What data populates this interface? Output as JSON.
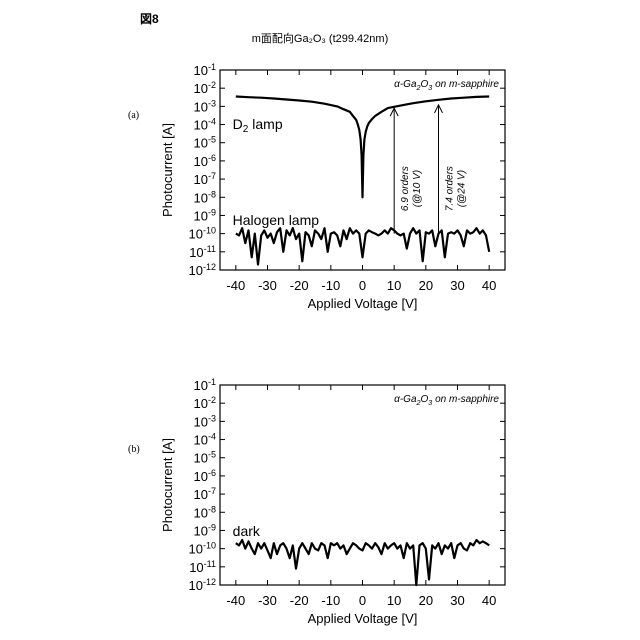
{
  "figure": {
    "label": "図8",
    "title": "m面配向Ga₂O₃ (t299.42nm)"
  },
  "panels": [
    {
      "label": "(a)"
    },
    {
      "label": "(b)"
    }
  ],
  "chart_data": [
    {
      "type": "line",
      "title": "",
      "xlabel": "Applied Voltage [V]",
      "ylabel": "Photocurrent [A]",
      "xlim": [
        -45,
        45
      ],
      "ylim": [
        1e-12,
        0.1
      ],
      "yscale": "log",
      "x_ticks": [
        -40,
        -30,
        -20,
        -10,
        0,
        10,
        20,
        30,
        40
      ],
      "y_ticks": [
        "10-1",
        "10-2",
        "10-3",
        "10-4",
        "10-5",
        "10-6",
        "10-7",
        "10-8",
        "10-9",
        "10-10",
        "10-11",
        "10-12"
      ],
      "inset_label": "α-Ga₂O₃ on m-sapphire",
      "annotations": [
        {
          "text": "6.9 orders",
          "sub": "(@10 V)",
          "x": 10,
          "from": 1e-10,
          "to": 0.0008
        },
        {
          "text": "7.4 orders",
          "sub": "(@24 V)",
          "x": 24,
          "from": 1e-10,
          "to": 0.0012
        }
      ],
      "series": [
        {
          "name": "D₂ lamp",
          "x": [
            -40,
            -36,
            -32,
            -28,
            -24,
            -20,
            -16,
            -12,
            -8,
            -6,
            -4,
            -3,
            -2,
            -1.5,
            -1,
            -0.6,
            -0.3,
            0,
            0.3,
            0.6,
            1,
            1.5,
            2,
            3,
            4,
            6,
            8,
            12,
            16,
            20,
            24,
            28,
            32,
            36,
            40
          ],
          "y": [
            0.0035,
            0.0032,
            0.003,
            0.0027,
            0.0024,
            0.0021,
            0.0018,
            0.0014,
            0.001,
            0.0007,
            0.0005,
            0.0003,
            0.00018,
            0.0001,
            5e-05,
            1.5e-05,
            2e-06,
            1e-08,
            2e-06,
            1.5e-05,
            4e-05,
            8e-05,
            0.00012,
            0.0002,
            0.0003,
            0.0005,
            0.0008,
            0.0011,
            0.0015,
            0.0019,
            0.0023,
            0.0027,
            0.003,
            0.0033,
            0.0035
          ]
        },
        {
          "name": "Halogen lamp",
          "x": [
            -40,
            -39,
            -38,
            -37,
            -36,
            -35,
            -34,
            -33,
            -32,
            -31,
            -30,
            -29,
            -28,
            -27,
            -26,
            -25,
            -24,
            -23,
            -22,
            -21,
            -20,
            -19,
            -18,
            -17,
            -16,
            -15,
            -14,
            -13,
            -12,
            -11,
            -10,
            -9,
            -8,
            -7,
            -6,
            -5,
            -4,
            -3,
            -2,
            -1,
            0,
            1,
            2,
            3,
            4,
            5,
            6,
            7,
            8,
            9,
            10,
            11,
            12,
            13,
            14,
            15,
            16,
            17,
            18,
            19,
            20,
            21,
            22,
            23,
            24,
            25,
            26,
            27,
            28,
            29,
            30,
            31,
            32,
            33,
            34,
            35,
            36,
            37,
            38,
            39,
            40
          ],
          "y": [
            1e-10,
            8e-11,
            2e-10,
            3e-11,
            1.5e-10,
            5e-12,
            1e-10,
            2e-12,
            8e-11,
            1.5e-10,
            6e-11,
            1e-10,
            3e-11,
            1.2e-10,
            2e-10,
            1e-11,
            1.5e-10,
            8e-11,
            2e-10,
            5e-11,
            1e-10,
            3e-12,
            1.2e-10,
            8e-11,
            2e-11,
            1.5e-10,
            1e-10,
            5e-11,
            2e-10,
            1e-11,
            1e-10,
            1.2e-10,
            8e-11,
            2e-11,
            1.5e-10,
            5e-11,
            2e-10,
            1e-10,
            1.5e-10,
            1e-10,
            5e-12,
            1e-10,
            1.5e-10,
            1.2e-10,
            1e-10,
            8e-11,
            1e-10,
            1.5e-10,
            1e-10,
            2e-10,
            1.5e-10,
            1e-10,
            8e-11,
            1e-10,
            1.5e-11,
            1e-10,
            2e-10,
            1e-10,
            1.5e-10,
            3e-12,
            1.2e-10,
            1e-10,
            1.5e-10,
            2e-11,
            1e-10,
            1.5e-10,
            5e-12,
            1e-10,
            1.2e-10,
            1e-10,
            1.5e-10,
            8e-11,
            2e-11,
            1.5e-10,
            1e-10,
            1.2e-10,
            2e-10,
            1e-10,
            1.5e-10,
            8e-11,
            1e-11
          ]
        }
      ],
      "series_labels_on_chart": [
        "D₂ lamp",
        "Halogen lamp"
      ]
    },
    {
      "type": "line",
      "title": "",
      "xlabel": "Applied Voltage [V]",
      "ylabel": "Photocurrent [A]",
      "xlim": [
        -45,
        45
      ],
      "ylim": [
        1e-12,
        0.1
      ],
      "yscale": "log",
      "x_ticks": [
        -40,
        -30,
        -20,
        -10,
        0,
        10,
        20,
        30,
        40
      ],
      "y_ticks": [
        "10-1",
        "10-2",
        "10-3",
        "10-4",
        "10-5",
        "10-6",
        "10-7",
        "10-8",
        "10-9",
        "10-10",
        "10-11",
        "10-12"
      ],
      "inset_label": "α-Ga₂O₃ on m-sapphire",
      "series": [
        {
          "name": "dark",
          "x": [
            -40,
            -39,
            -38,
            -37,
            -36,
            -35,
            -34,
            -33,
            -32,
            -31,
            -30,
            -29,
            -28,
            -27,
            -26,
            -25,
            -24,
            -23,
            -22,
            -21,
            -20,
            -19,
            -18,
            -17,
            -16,
            -15,
            -14,
            -13,
            -12,
            -11,
            -10,
            -9,
            -8,
            -7,
            -6,
            -5,
            -4,
            -3,
            -2,
            -1,
            0,
            1,
            2,
            3,
            4,
            5,
            6,
            7,
            8,
            9,
            10,
            11,
            12,
            13,
            14,
            15,
            16,
            17,
            18,
            19,
            20,
            21,
            22,
            23,
            24,
            25,
            26,
            27,
            28,
            29,
            30,
            31,
            32,
            33,
            34,
            35,
            36,
            37,
            38,
            39,
            40
          ],
          "y": [
            2e-10,
            1.5e-10,
            3e-10,
            1e-10,
            2.5e-10,
            1e-10,
            5e-11,
            2e-10,
            1e-10,
            2e-10,
            8e-11,
            3e-11,
            2e-10,
            5e-11,
            1.5e-10,
            2e-10,
            1e-10,
            3e-11,
            1.5e-10,
            8e-12,
            1e-10,
            2e-10,
            1e-10,
            5e-11,
            2e-10,
            1e-10,
            8e-11,
            2e-10,
            1.5e-10,
            3e-11,
            2e-10,
            1.5e-10,
            2e-10,
            1e-10,
            1.5e-10,
            5e-11,
            1e-10,
            2e-10,
            1.5e-10,
            1e-10,
            8e-11,
            2e-10,
            1.5e-10,
            1e-10,
            2e-10,
            1.2e-10,
            5e-11,
            2e-10,
            1e-10,
            1.5e-10,
            2e-10,
            1e-10,
            1.5e-10,
            3e-11,
            2e-10,
            1e-10,
            1.5e-10,
            1e-12,
            1.5e-10,
            2e-10,
            1e-10,
            2e-12,
            1.5e-10,
            1e-10,
            2e-10,
            5e-11,
            1.5e-10,
            1e-10,
            2e-10,
            3e-11,
            1.5e-10,
            2e-10,
            1e-10,
            8e-11,
            2e-10,
            1.5e-10,
            3e-10,
            2e-10,
            2.5e-10,
            2e-10,
            1.5e-10
          ]
        }
      ],
      "series_labels_on_chart": [
        "dark"
      ]
    }
  ]
}
